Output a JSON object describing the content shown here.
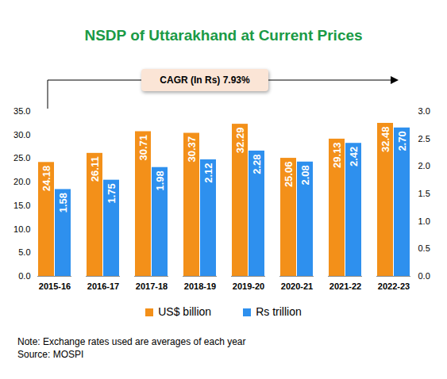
{
  "chart_data": {
    "type": "bar",
    "title": "NSDP of Uttarakhand at Current Prices",
    "annotations": [
      "CAGR (In Rs) 7.93%"
    ],
    "categories": [
      "2015-16",
      "2016-17",
      "2017-18",
      "2018-19",
      "2019-20",
      "2020-21",
      "2021-22",
      "2022-23"
    ],
    "series": [
      {
        "name": "US$ billion",
        "color": "#f39019",
        "values": [
          24.18,
          26.11,
          30.71,
          30.37,
          32.29,
          25.06,
          29.13,
          32.48
        ]
      },
      {
        "name": "Rs trillion",
        "color": "#2e90ee",
        "axis": "y2",
        "values": [
          1.58,
          1.75,
          1.98,
          2.12,
          2.28,
          2.08,
          2.42,
          2.7
        ],
        "value_labels": [
          "1.58",
          "1.75",
          "1.98",
          "2.12",
          "2.28",
          "2.08",
          "2.42",
          "2.70"
        ]
      }
    ],
    "ylim": [
      0,
      35
    ],
    "yticks": [
      {
        "value": 0,
        "label": "0.0"
      },
      {
        "value": 5,
        "label": "5.0"
      },
      {
        "value": 10,
        "label": "10.0"
      },
      {
        "value": 15,
        "label": "15.0"
      },
      {
        "value": 20,
        "label": "20.0"
      },
      {
        "value": 25,
        "label": "25.0"
      },
      {
        "value": 30,
        "label": "30.0"
      },
      {
        "value": 35,
        "label": "35.0"
      }
    ],
    "y2lim": [
      0,
      3
    ],
    "y2ticks": [
      {
        "value": 0,
        "label": "0.0"
      },
      {
        "value": 0.5,
        "label": "0.5"
      },
      {
        "value": 1,
        "label": "1.0"
      },
      {
        "value": 1.5,
        "label": "1.5"
      },
      {
        "value": 2,
        "label": "2.0"
      },
      {
        "value": 2.5,
        "label": "2.5"
      },
      {
        "value": 3,
        "label": "3.0"
      }
    ],
    "data_labels": true,
    "grid": false,
    "legend": "bottom",
    "note": "Note: Exchange rates used are averages of each year",
    "source": "Source: MOSPI"
  }
}
